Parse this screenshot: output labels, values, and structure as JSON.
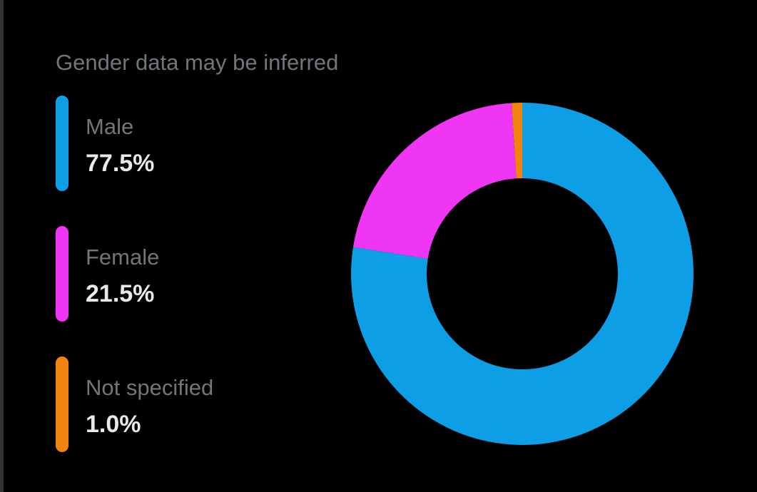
{
  "chart_data": {
    "type": "pie",
    "subtitle": "Gender data may be inferred",
    "series": [
      {
        "name": "Male",
        "value": 77.5,
        "label": "77.5%",
        "color": "#0d9ee6"
      },
      {
        "name": "Female",
        "value": 21.5,
        "label": "21.5%",
        "color": "#f036f5"
      },
      {
        "name": "Not specified",
        "value": 1.0,
        "label": "1.0%",
        "color": "#f28311"
      }
    ],
    "donut": true,
    "legend_position": "left"
  }
}
